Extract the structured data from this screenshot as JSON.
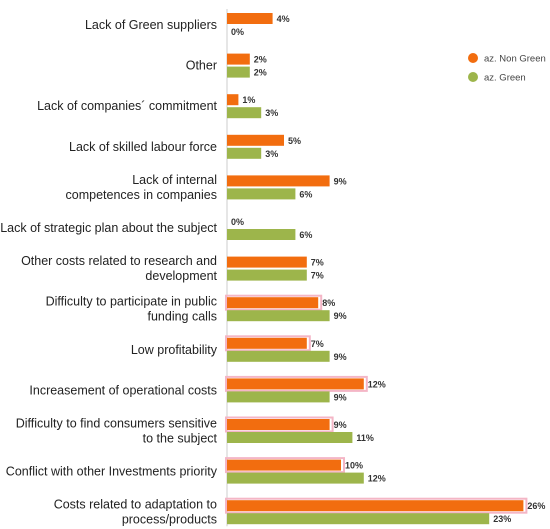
{
  "chart_data": {
    "type": "bar",
    "orientation": "horizontal",
    "categories": [
      "Lack of Green suppliers",
      "Other",
      "Lack of companies´ commitment",
      "Lack of skilled labour force",
      "Lack of internal competences in companies",
      "Lack of strategic plan about the subject",
      "Other costs related to research and development",
      "Difficulty to participate in public funding calls",
      "Low profitability",
      "Increasement of operational costs",
      "Difficulty to find consumers sensitive to the subject",
      "Conflict with other Investments priority",
      "Costs related to adaptation to process/products"
    ],
    "category_lines": [
      [
        "Lack of Green suppliers"
      ],
      [
        "Other"
      ],
      [
        "Lack of companies´ commitment"
      ],
      [
        "Lack of skilled labour force"
      ],
      [
        "Lack of internal",
        "competences in companies"
      ],
      [
        "Lack of strategic plan about the subject"
      ],
      [
        "Other costs related to research and",
        "development"
      ],
      [
        "Difficulty to participate in public",
        "funding calls"
      ],
      [
        "Low profitability"
      ],
      [
        "Increasement of operational costs"
      ],
      [
        "Difficulty to find consumers sensitive",
        "to the subject"
      ],
      [
        "Conflict with other Investments priority"
      ],
      [
        "Costs related to adaptation to",
        "process/products"
      ]
    ],
    "series": [
      {
        "name": "az. Non Green",
        "color": "#F26D0F",
        "values": [
          4,
          2,
          1,
          5,
          9,
          0,
          7,
          8,
          7,
          12,
          9,
          10,
          26
        ],
        "value_labels": [
          "4%",
          "2%",
          "1%",
          "5%",
          "9%",
          "0%",
          "7%",
          "8%",
          "7%",
          "12%",
          "9%",
          "10%",
          "26%"
        ]
      },
      {
        "name": "az. Green",
        "color": "#9DB54B",
        "values": [
          0,
          2,
          3,
          3,
          6,
          6,
          7,
          9,
          9,
          9,
          11,
          12,
          23
        ],
        "value_labels": [
          "0%",
          "2%",
          "3%",
          "3%",
          "6%",
          "6%",
          "7%",
          "9%",
          "9%",
          "9%",
          "11%",
          "12%",
          "23%"
        ]
      }
    ],
    "highlighted_categories": [
      "Difficulty to participate in public funding calls",
      "Low profitability",
      "Increasement of operational costs",
      "Difficulty to find consumers sensitive to the subject",
      "Conflict with other Investments priority",
      "Costs related to adaptation to process/products"
    ],
    "highlight_color": "#F4B6C6",
    "xlim": [
      0,
      26
    ],
    "grid": false,
    "legend_position": "top-right",
    "axis_line_color": "#CCCCCC"
  }
}
